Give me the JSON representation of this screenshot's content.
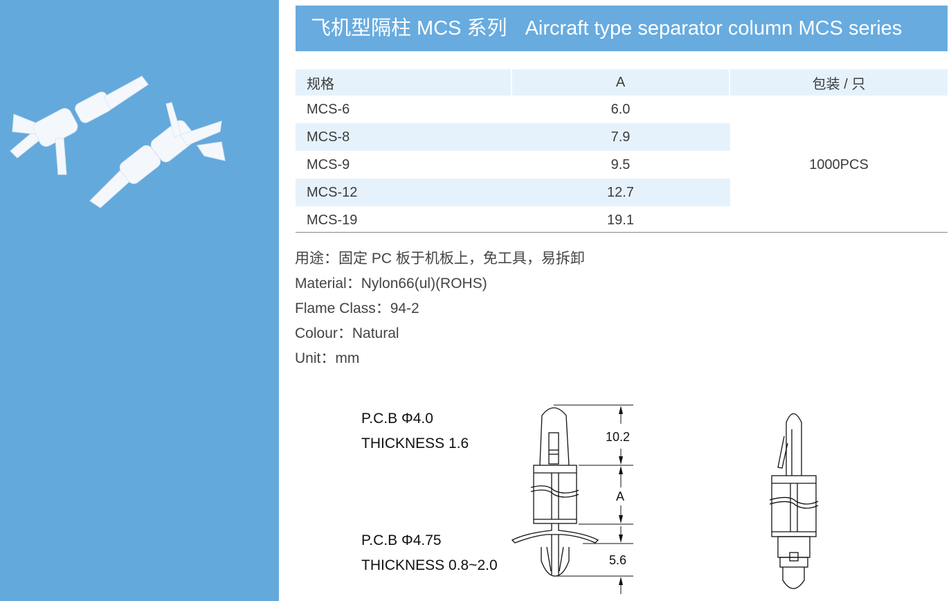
{
  "colors": {
    "sidebar": "#64a9dc",
    "banner": "#68abdf",
    "stripe": "#e6f2fb"
  },
  "banner": {
    "title_cn": "飞机型隔柱 MCS 系列",
    "title_en": "Aircraft type separator column MCS series"
  },
  "table": {
    "headers": [
      "规格",
      "A",
      "包装 / 只"
    ],
    "rows": [
      {
        "model": "MCS-6",
        "a": "6.0"
      },
      {
        "model": "MCS-8",
        "a": "7.9"
      },
      {
        "model": "MCS-9",
        "a": "9.5"
      },
      {
        "model": "MCS-12",
        "a": "12.7"
      },
      {
        "model": "MCS-19",
        "a": "19.1"
      }
    ],
    "packing": "1000PCS"
  },
  "notes": [
    "用途：固定 PC 板于机板上，免工具，易拆卸",
    "Material：Nylon66(ul)(ROHS)",
    "Flame Class：94-2",
    "Colour：Natural",
    "Unit：mm"
  ],
  "drawing": {
    "top_pcb": "P.C.B Φ4.0",
    "top_thickness": "THICKNESS 1.6",
    "bottom_pcb": "P.C.B Φ4.75",
    "bottom_thickness": "THICKNESS 0.8~2.0",
    "dim_top": "10.2",
    "dim_mid": "A",
    "dim_bottom": "5.6"
  }
}
